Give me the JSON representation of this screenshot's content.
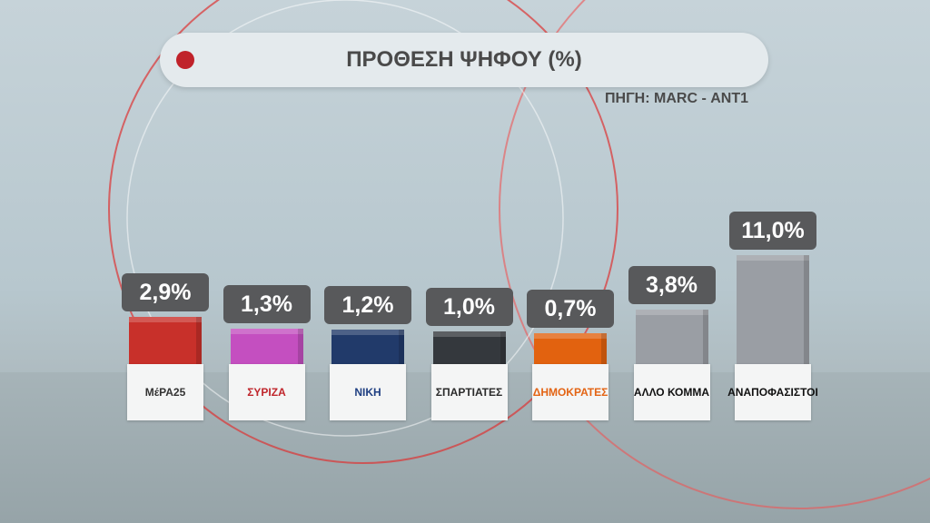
{
  "chart_data": {
    "type": "bar",
    "title": "ΠΡΟΘΕΣΗ ΨΗΦΟΥ (%)",
    "subtitle": "ΠΗΓΗ: MARC - ΑΝΤ1",
    "categories": [
      "ΜέΡΑ25",
      "ΣΥΡΙΖΑ",
      "ΝΙΚΗ",
      "ΣΠΑΡΤΙΑΤΕΣ",
      "ΔΗΜΟΚΡΑΤΕΣ",
      "ΑΛΛΟ ΚΟΜΜΑ",
      "ΑΝΑΠΟΦΑΣΙΣΤΟΙ"
    ],
    "values": [
      2.9,
      1.3,
      1.2,
      1.0,
      0.7,
      3.8,
      11.0
    ],
    "value_labels": [
      "2,9%",
      "1,3%",
      "1,2%",
      "1,0%",
      "0,7%",
      "3,8%",
      "11,0%"
    ],
    "colors": [
      "#c8302a",
      "#c44fc0",
      "#213a6a",
      "#34383d",
      "#e2620f",
      "#9a9ea4",
      "#9a9ea4"
    ],
    "category_colors": [
      "#333333",
      "#c0262c",
      "#1f3f82",
      "#2b2b2b",
      "#e36414",
      "#111111",
      "#111111"
    ]
  }
}
